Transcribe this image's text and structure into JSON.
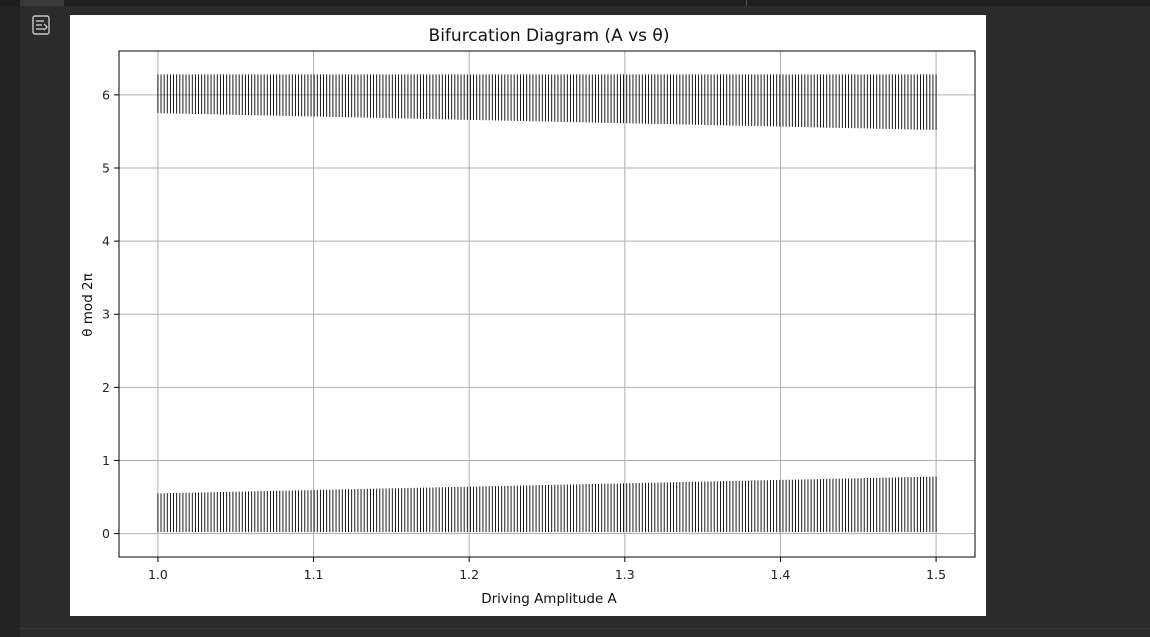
{
  "ui": {
    "output_icon": "output-toggle-icon",
    "colors": {
      "background": "#2b2b2b",
      "figure": "#ffffff",
      "marks": "#000000",
      "grid": "#b0b0b0"
    }
  },
  "chart_data": {
    "type": "scatter",
    "title": "Bifurcation Diagram (A vs θ)",
    "xlabel": "Driving Amplitude A",
    "ylabel": "θ mod 2π",
    "xlim": [
      0.975,
      1.525
    ],
    "ylim": [
      -0.32,
      6.6
    ],
    "xticks": [
      1.0,
      1.1,
      1.2,
      1.3,
      1.4,
      1.5
    ],
    "xtick_labels": [
      "1.0",
      "1.1",
      "1.2",
      "1.3",
      "1.4",
      "1.5"
    ],
    "yticks": [
      0,
      1,
      2,
      3,
      4,
      5,
      6
    ],
    "ytick_labels": [
      "0",
      "1",
      "2",
      "3",
      "4",
      "5",
      "6"
    ],
    "grid": true,
    "marker_color": "#000000",
    "A_range": [
      1.0,
      1.5
    ],
    "bands": [
      {
        "lower_start": 0.02,
        "upper_start": 0.55,
        "lower_end": 0.02,
        "upper_end": 0.78
      },
      {
        "lower_start": 5.75,
        "upper_start": 6.28,
        "lower_end": 5.52,
        "upper_end": 6.28
      }
    ]
  }
}
